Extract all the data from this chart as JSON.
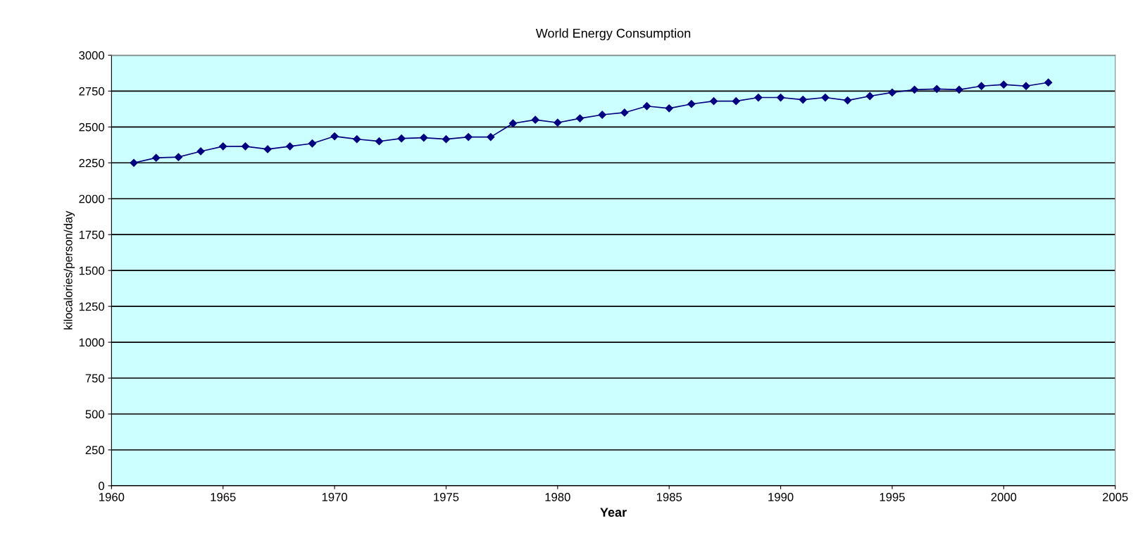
{
  "chart_data": {
    "type": "line",
    "title": "World Energy Consumption",
    "xlabel": "Year",
    "ylabel": "kilocalories/person/day",
    "x": [
      1961,
      1962,
      1963,
      1964,
      1965,
      1966,
      1967,
      1968,
      1969,
      1970,
      1971,
      1972,
      1973,
      1974,
      1975,
      1976,
      1977,
      1978,
      1979,
      1980,
      1981,
      1982,
      1983,
      1984,
      1985,
      1986,
      1987,
      1988,
      1989,
      1990,
      1991,
      1992,
      1993,
      1994,
      1995,
      1996,
      1997,
      1998,
      1999,
      2000,
      2001,
      2002
    ],
    "series": [
      {
        "color": "#000080",
        "values": [
          2250,
          2285,
          2290,
          2330,
          2365,
          2365,
          2345,
          2365,
          2385,
          2435,
          2415,
          2400,
          2420,
          2425,
          2415,
          2430,
          2430,
          2525,
          2550,
          2530,
          2560,
          2585,
          2600,
          2645,
          2630,
          2660,
          2680,
          2680,
          2705,
          2705,
          2690,
          2705,
          2685,
          2715,
          2740,
          2760,
          2765,
          2760,
          2785,
          2795,
          2785,
          2810
        ]
      }
    ],
    "xlim": [
      1960,
      2005
    ],
    "xticks": [
      1960,
      1965,
      1970,
      1975,
      1980,
      1985,
      1990,
      1995,
      2000,
      2005
    ],
    "ylim": [
      0,
      3000
    ],
    "yticks": [
      0,
      250,
      500,
      750,
      1000,
      1250,
      1500,
      1750,
      2000,
      2250,
      2500,
      2750,
      3000
    ],
    "grid": "y",
    "marker": "diamond",
    "line_style": "solid",
    "legend": false
  }
}
